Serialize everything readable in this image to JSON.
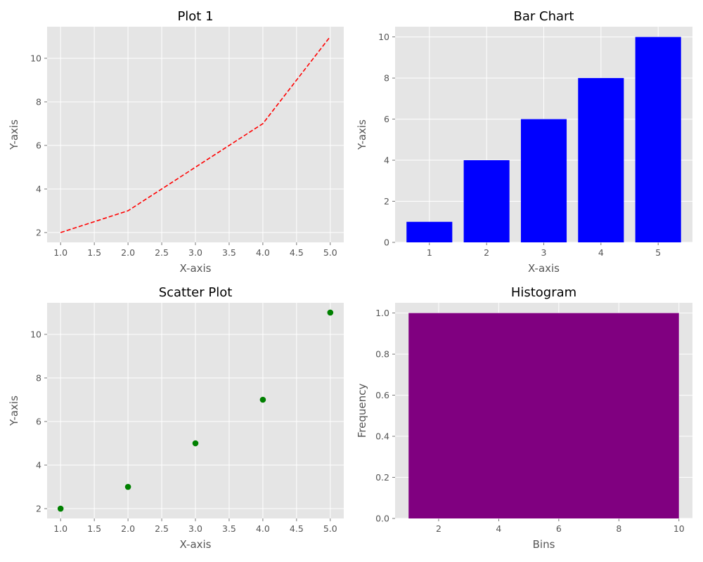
{
  "chart_data": [
    {
      "type": "line",
      "title": "Plot 1",
      "xlabel": "X-axis",
      "ylabel": "Y-axis",
      "x": [
        1,
        2,
        3,
        4,
        5
      ],
      "series": [
        {
          "values": [
            2,
            3,
            5,
            7,
            11
          ],
          "color": "#ff0000",
          "style": "dashed"
        }
      ],
      "xlim": [
        0.8,
        5.2
      ],
      "ylim": [
        1.55,
        11.45
      ],
      "xticks": [
        1.0,
        1.5,
        2.0,
        2.5,
        3.0,
        3.5,
        4.0,
        4.5,
        5.0
      ],
      "xtick_labels": [
        "1.0",
        "1.5",
        "2.0",
        "2.5",
        "3.0",
        "3.5",
        "4.0",
        "4.5",
        "5.0"
      ],
      "yticks": [
        2,
        4,
        6,
        8,
        10
      ],
      "ytick_labels": [
        "2",
        "4",
        "6",
        "8",
        "10"
      ],
      "grid": true,
      "background": "#e5e5e5"
    },
    {
      "type": "bar",
      "title": "Bar Chart",
      "xlabel": "X-axis",
      "ylabel": "Y-axis",
      "categories": [
        "1",
        "2",
        "3",
        "4",
        "5"
      ],
      "values": [
        1,
        4,
        6,
        8,
        10
      ],
      "color": "#0000ff",
      "xlim": [
        0.4,
        5.6
      ],
      "ylim": [
        0,
        10.5
      ],
      "xticks": [
        1,
        2,
        3,
        4,
        5
      ],
      "xtick_labels": [
        "1",
        "2",
        "3",
        "4",
        "5"
      ],
      "yticks": [
        0,
        2,
        4,
        6,
        8,
        10
      ],
      "ytick_labels": [
        "0",
        "2",
        "4",
        "6",
        "8",
        "10"
      ],
      "grid": true,
      "background": "#e5e5e5"
    },
    {
      "type": "scatter",
      "title": "Scatter Plot",
      "xlabel": "X-axis",
      "ylabel": "Y-axis",
      "x": [
        1,
        2,
        3,
        4,
        5
      ],
      "series": [
        {
          "values": [
            2,
            3,
            5,
            7,
            11
          ],
          "color": "#008000"
        }
      ],
      "xlim": [
        0.8,
        5.2
      ],
      "ylim": [
        1.55,
        11.45
      ],
      "xticks": [
        1.0,
        1.5,
        2.0,
        2.5,
        3.0,
        3.5,
        4.0,
        4.5,
        5.0
      ],
      "xtick_labels": [
        "1.0",
        "1.5",
        "2.0",
        "2.5",
        "3.0",
        "3.5",
        "4.0",
        "4.5",
        "5.0"
      ],
      "yticks": [
        2,
        4,
        6,
        8,
        10
      ],
      "ytick_labels": [
        "2",
        "4",
        "6",
        "8",
        "10"
      ],
      "grid": true,
      "background": "#e5e5e5"
    },
    {
      "type": "bar",
      "subtype": "histogram",
      "title": "Histogram",
      "xlabel": "Bins",
      "ylabel": "Frequency",
      "bins": [
        [
          1,
          10
        ]
      ],
      "values": [
        1.0
      ],
      "color": "#800080",
      "xlim": [
        0.55,
        10.45
      ],
      "ylim": [
        0,
        1.05
      ],
      "xticks": [
        2,
        4,
        6,
        8,
        10
      ],
      "xtick_labels": [
        "2",
        "4",
        "6",
        "8",
        "10"
      ],
      "yticks": [
        0.0,
        0.2,
        0.4,
        0.6,
        0.8,
        1.0
      ],
      "ytick_labels": [
        "0.0",
        "0.2",
        "0.4",
        "0.6",
        "0.8",
        "1.0"
      ],
      "grid": true,
      "background": "#e5e5e5"
    }
  ]
}
